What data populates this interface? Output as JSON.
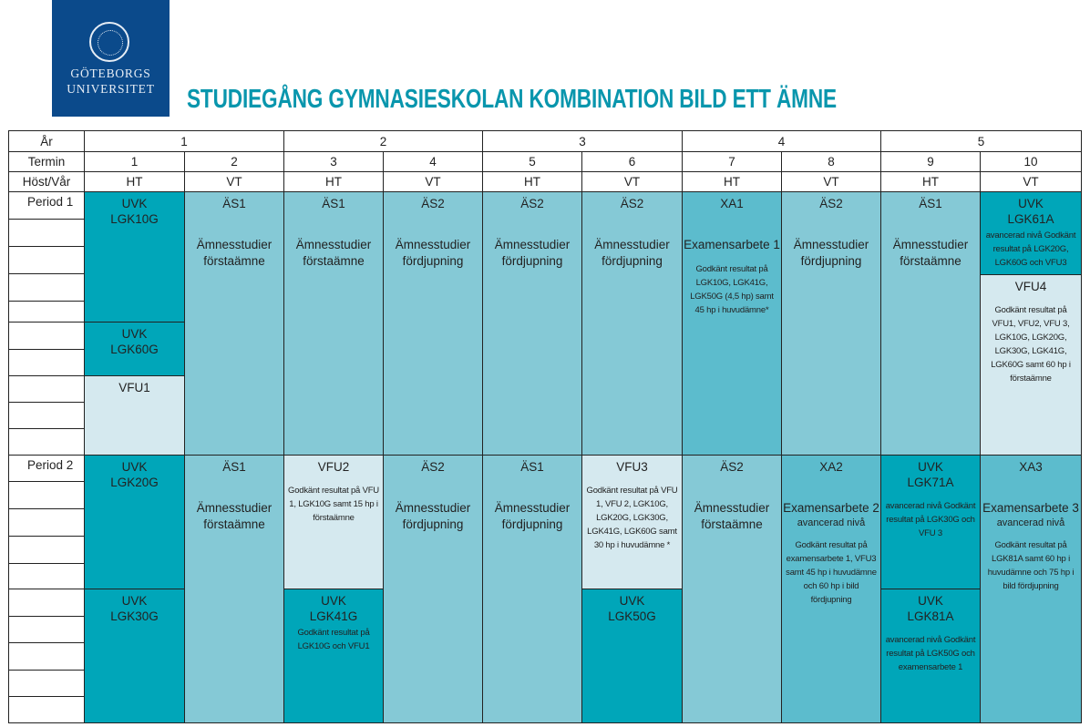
{
  "logo": {
    "line1": "GÖTEBORGS",
    "line2": "UNIVERSITET"
  },
  "title": "STUDIEGÅNG GYMNASIESKOLAN KOMBINATION BILD ETT ÄMNE",
  "colors": {
    "uvk": "#00a6b9",
    "as": "#85c9d6",
    "xa": "#5cbccd",
    "vfu": "#d5e9ef",
    "title": "#0996ad",
    "logo": "#0b4a8b"
  },
  "header": {
    "ar_label": "År",
    "termin_label": "Termin",
    "hostvar_label": "Höst/Vår",
    "years": [
      "1",
      "2",
      "3",
      "4",
      "5"
    ],
    "terms": [
      "1",
      "2",
      "3",
      "4",
      "5",
      "6",
      "7",
      "8",
      "9",
      "10"
    ],
    "seasons": [
      "HT",
      "VT",
      "HT",
      "VT",
      "HT",
      "VT",
      "HT",
      "VT",
      "HT",
      "VT"
    ]
  },
  "periods": [
    "Period 1",
    "Period 2"
  ],
  "blocks": [
    {
      "period": 0,
      "col": 0,
      "from": 0,
      "to": 0.494,
      "kind": "dark",
      "code": "UVK",
      "code2": "LGK10G"
    },
    {
      "period": 0,
      "col": 0,
      "from": 0.494,
      "to": 0.699,
      "kind": "dark",
      "code": "UVK",
      "code2": "LGK60G"
    },
    {
      "period": 0,
      "col": 0,
      "from": 0.699,
      "to": 1,
      "kind": "pale",
      "code": "VFU1"
    },
    {
      "period": 0,
      "col": 1,
      "from": 0,
      "to": 1,
      "kind": "light",
      "code": "ÄS1",
      "name": "Ämnesstudier",
      "name2": "förstaämne"
    },
    {
      "period": 0,
      "col": 2,
      "from": 0,
      "to": 1,
      "kind": "light",
      "code": "ÄS1",
      "name": "Ämnesstudier",
      "name2": "förstaämne"
    },
    {
      "period": 0,
      "col": 3,
      "from": 0,
      "to": 1,
      "kind": "light",
      "code": "ÄS2",
      "name": "Ämnesstudier",
      "name2": "fördjupning"
    },
    {
      "period": 0,
      "col": 4,
      "from": 0,
      "to": 1,
      "kind": "light",
      "code": "ÄS2",
      "name": "Ämnesstudier",
      "name2": "fördjupning"
    },
    {
      "period": 0,
      "col": 5,
      "from": 0,
      "to": 1,
      "kind": "light",
      "code": "ÄS2",
      "name": "Ämnesstudier",
      "name2": "fördjupning"
    },
    {
      "period": 0,
      "col": 6,
      "from": 0,
      "to": 1,
      "kind": "mid",
      "code": "XA1",
      "name": "Examensarbete 1",
      "note": "Godkänt resultat på LGK10G, LGK41G, LGK50G (4,5 hp) samt 45 hp i huvudämne*"
    },
    {
      "period": 0,
      "col": 7,
      "from": 0,
      "to": 1,
      "kind": "light",
      "code": "ÄS2",
      "name": "Ämnesstudier",
      "name2": "fördjupning"
    },
    {
      "period": 0,
      "col": 8,
      "from": 0,
      "to": 1,
      "kind": "light",
      "code": "ÄS1",
      "name": "Ämnesstudier",
      "name2": "förstaämne"
    },
    {
      "period": 0,
      "col": 9,
      "from": 0,
      "to": 0.315,
      "kind": "dark",
      "code": "UVK",
      "code2": "LGK61A",
      "tightnote": "avancerad nivå Godkänt resultat på LGK20G, LGK60G och VFU3"
    },
    {
      "period": 0,
      "col": 9,
      "from": 0.315,
      "to": 1,
      "kind": "pale",
      "code": "VFU4",
      "note": "Godkänt resultat på VFU1, VFU2, VFU 3, LGK10G, LGK20G, LGK30G, LGK41G, LGK60G samt 60 hp i förstaämne"
    },
    {
      "period": 1,
      "col": 0,
      "from": 0,
      "to": 0.5,
      "kind": "dark",
      "code": "UVK",
      "code2": "LGK20G"
    },
    {
      "period": 1,
      "col": 0,
      "from": 0.5,
      "to": 1,
      "kind": "dark",
      "code": "UVK",
      "code2": "LGK30G"
    },
    {
      "period": 1,
      "col": 1,
      "from": 0,
      "to": 1,
      "kind": "light",
      "code": "ÄS1",
      "name": "Ämnesstudier",
      "name2": "förstaämne"
    },
    {
      "period": 1,
      "col": 2,
      "from": 0,
      "to": 0.5,
      "kind": "pale",
      "code": "VFU2",
      "note": "Godkänt resultat på VFU 1, LGK10G samt 15 hp i förstaämne"
    },
    {
      "period": 1,
      "col": 2,
      "from": 0.5,
      "to": 1,
      "kind": "dark",
      "code": "UVK",
      "code2": "LGK41G",
      "tightnote": "Godkänt resultat på LGK10G och VFU1"
    },
    {
      "period": 1,
      "col": 3,
      "from": 0,
      "to": 1,
      "kind": "light",
      "code": "ÄS2",
      "name": "Ämnesstudier",
      "name2": "fördjupning"
    },
    {
      "period": 1,
      "col": 4,
      "from": 0,
      "to": 1,
      "kind": "light",
      "code": "ÄS1",
      "name": "Ämnesstudier",
      "name2": "fördjupning"
    },
    {
      "period": 1,
      "col": 5,
      "from": 0,
      "to": 0.5,
      "kind": "pale",
      "code": "VFU3",
      "note": "Godkänt resultat på VFU 1, VFU 2, LGK10G, LGK20G, LGK30G, LGK41G, LGK60G samt 30 hp i huvudämne *"
    },
    {
      "period": 1,
      "col": 5,
      "from": 0.5,
      "to": 1,
      "kind": "dark",
      "code": "UVK",
      "code2": "LGK50G"
    },
    {
      "period": 1,
      "col": 6,
      "from": 0,
      "to": 1,
      "kind": "light",
      "code": "ÄS2",
      "name": "Ämnesstudier",
      "name2": "förstaämne"
    },
    {
      "period": 1,
      "col": 7,
      "from": 0,
      "to": 1,
      "kind": "mid",
      "code": "XA2",
      "name": "Examensarbete 2",
      "sub": "avancerad nivå",
      "note": "Godkänt resultat på examensarbete 1, VFU3 samt 45 hp i huvudämne och 60 hp i bild fördjupning"
    },
    {
      "period": 1,
      "col": 8,
      "from": 0,
      "to": 0.5,
      "kind": "dark",
      "code": "UVK",
      "code2": "LGK71A",
      "note": "avancerad nivå Godkänt resultat på LGK30G och VFU 3"
    },
    {
      "period": 1,
      "col": 8,
      "from": 0.5,
      "to": 1,
      "kind": "dark",
      "code": "UVK",
      "code2": "LGK81A",
      "note": "avancerad nivå Godkänt resultat på LGK50G och examensarbete 1"
    },
    {
      "period": 1,
      "col": 9,
      "from": 0,
      "to": 1,
      "kind": "mid",
      "code": "XA3",
      "name": "Examensarbete 3",
      "sub": "avancerad nivå",
      "note": "Godkänt resultat på LGK81A samt 60 hp i huvudämne och 75 hp i bild fördjupning"
    }
  ]
}
